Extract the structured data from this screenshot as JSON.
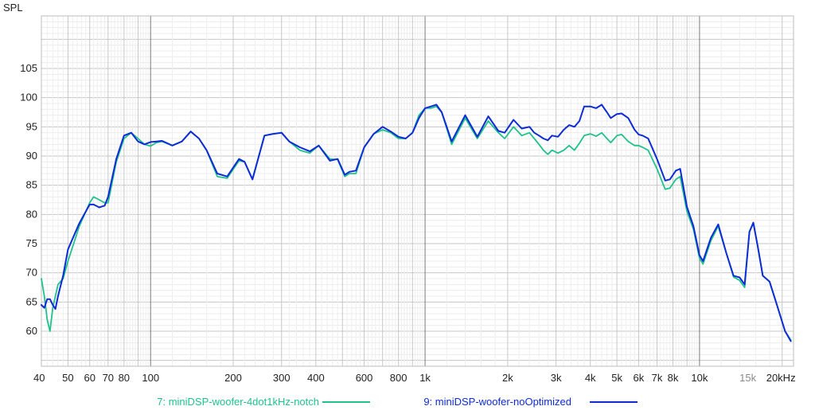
{
  "chart_data": {
    "type": "line",
    "ylabel": "SPL",
    "ylim": [
      54,
      114
    ],
    "xlim": [
      40,
      22000
    ],
    "x_scale": "log",
    "grid": true,
    "legend_placement": "bottom",
    "y_ticks": [
      {
        "value": 60,
        "label": "60"
      },
      {
        "value": 65,
        "label": "65"
      },
      {
        "value": 70,
        "label": "70"
      },
      {
        "value": 75,
        "label": "75"
      },
      {
        "value": 80,
        "label": "80"
      },
      {
        "value": 85,
        "label": "85"
      },
      {
        "value": 90,
        "label": "90"
      },
      {
        "value": 95,
        "label": "95"
      },
      {
        "value": 100,
        "label": "100"
      },
      {
        "value": 105,
        "label": "105"
      }
    ],
    "x_ticks": [
      {
        "value": 40,
        "label": "40"
      },
      {
        "value": 50,
        "label": "50"
      },
      {
        "value": 60,
        "label": "60"
      },
      {
        "value": 70,
        "label": "70"
      },
      {
        "value": 80,
        "label": "80"
      },
      {
        "value": 100,
        "label": "100"
      },
      {
        "value": 200,
        "label": "200"
      },
      {
        "value": 300,
        "label": "300"
      },
      {
        "value": 400,
        "label": "400"
      },
      {
        "value": 600,
        "label": "600"
      },
      {
        "value": 800,
        "label": "800"
      },
      {
        "value": 1000,
        "label": "1k"
      },
      {
        "value": 2000,
        "label": "2k"
      },
      {
        "value": 3000,
        "label": "3k"
      },
      {
        "value": 4000,
        "label": "4k"
      },
      {
        "value": 5000,
        "label": "5k"
      },
      {
        "value": 6000,
        "label": "6k"
      },
      {
        "value": 7000,
        "label": "7k"
      },
      {
        "value": 8000,
        "label": "8k"
      },
      {
        "value": 10000,
        "label": "10k"
      },
      {
        "value": 15000,
        "label": "15k",
        "minor": true
      },
      {
        "value": 20000,
        "label": "20kHz"
      }
    ],
    "major_x_gridlines": [
      100,
      1000,
      10000
    ],
    "series": [
      {
        "name": "7: miniDSP-woofer-4dot1kHz-notch",
        "color": "#1fc28a",
        "points": [
          [
            40,
            69
          ],
          [
            41,
            66
          ],
          [
            42,
            62
          ],
          [
            43,
            60
          ],
          [
            44,
            64
          ],
          [
            46,
            68
          ],
          [
            48,
            69
          ],
          [
            50,
            72
          ],
          [
            55,
            78
          ],
          [
            60,
            82
          ],
          [
            62,
            83
          ],
          [
            65,
            82.5
          ],
          [
            68,
            82
          ],
          [
            70,
            82
          ],
          [
            75,
            89
          ],
          [
            80,
            93
          ],
          [
            85,
            94
          ],
          [
            90,
            93
          ],
          [
            95,
            92
          ],
          [
            100,
            91.7
          ],
          [
            105,
            92.3
          ],
          [
            110,
            92.5
          ],
          [
            120,
            91.8
          ],
          [
            130,
            92.5
          ],
          [
            140,
            94.2
          ],
          [
            150,
            93
          ],
          [
            160,
            91
          ],
          [
            175,
            86.5
          ],
          [
            190,
            86.2
          ],
          [
            210,
            89.2
          ],
          [
            220,
            89
          ],
          [
            235,
            86
          ],
          [
            260,
            93.5
          ],
          [
            280,
            93.8
          ],
          [
            300,
            94
          ],
          [
            320,
            92.5
          ],
          [
            350,
            91
          ],
          [
            380,
            90.5
          ],
          [
            410,
            91.8
          ],
          [
            450,
            89.5
          ],
          [
            480,
            89.4
          ],
          [
            510,
            86.5
          ],
          [
            530,
            87
          ],
          [
            560,
            87
          ],
          [
            600,
            91.5
          ],
          [
            650,
            93.8
          ],
          [
            700,
            94.5
          ],
          [
            750,
            94
          ],
          [
            800,
            93
          ],
          [
            850,
            93
          ],
          [
            900,
            94
          ],
          [
            950,
            97
          ],
          [
            1000,
            98.2
          ],
          [
            1050,
            98.2
          ],
          [
            1100,
            98.5
          ],
          [
            1150,
            97.5
          ],
          [
            1250,
            92
          ],
          [
            1400,
            96.5
          ],
          [
            1550,
            93
          ],
          [
            1700,
            96
          ],
          [
            1850,
            94
          ],
          [
            1950,
            93
          ],
          [
            2100,
            95
          ],
          [
            2250,
            93.5
          ],
          [
            2400,
            94
          ],
          [
            2500,
            93
          ],
          [
            2600,
            92
          ],
          [
            2700,
            91
          ],
          [
            2800,
            90.3
          ],
          [
            2900,
            91
          ],
          [
            3050,
            90.5
          ],
          [
            3200,
            91
          ],
          [
            3350,
            91.8
          ],
          [
            3500,
            91
          ],
          [
            3650,
            92.2
          ],
          [
            3800,
            93.5
          ],
          [
            4000,
            93.8
          ],
          [
            4200,
            93.4
          ],
          [
            4400,
            94
          ],
          [
            4600,
            93
          ],
          [
            4750,
            92.3
          ],
          [
            5000,
            93.5
          ],
          [
            5200,
            93.7
          ],
          [
            5500,
            92.5
          ],
          [
            5800,
            91.8
          ],
          [
            6000,
            91.8
          ],
          [
            6200,
            91.5
          ],
          [
            6500,
            91
          ],
          [
            7000,
            87.8
          ],
          [
            7500,
            84.3
          ],
          [
            7800,
            84.5
          ],
          [
            8200,
            86
          ],
          [
            8500,
            86.5
          ],
          [
            9000,
            80.5
          ],
          [
            9500,
            77.5
          ],
          [
            10000,
            72.5
          ],
          [
            10300,
            71.5
          ],
          [
            11000,
            75.5
          ],
          [
            11700,
            78
          ],
          [
            12500,
            73.5
          ],
          [
            13300,
            69.3
          ],
          [
            14000,
            68.7
          ],
          [
            14600,
            67.5
          ],
          [
            15200,
            77
          ],
          [
            15700,
            78.5
          ],
          [
            16300,
            74.5
          ],
          [
            17000,
            69.5
          ],
          [
            18000,
            68.5
          ],
          [
            19000,
            65
          ],
          [
            20500,
            60
          ],
          [
            21500,
            58.5
          ]
        ]
      },
      {
        "name": "9: miniDSP-woofer-noOptimized",
        "color": "#0d2bd6",
        "points": [
          [
            40,
            64.5
          ],
          [
            41,
            64
          ],
          [
            42,
            65.5
          ],
          [
            43,
            65.5
          ],
          [
            44,
            64.5
          ],
          [
            45,
            63.8
          ],
          [
            46,
            66
          ],
          [
            48,
            69.5
          ],
          [
            50,
            74
          ],
          [
            55,
            78.5
          ],
          [
            60,
            81.7
          ],
          [
            62,
            81.7
          ],
          [
            65,
            81.2
          ],
          [
            68,
            81.5
          ],
          [
            70,
            83
          ],
          [
            75,
            89.5
          ],
          [
            80,
            93.5
          ],
          [
            85,
            94
          ],
          [
            90,
            92.5
          ],
          [
            95,
            92
          ],
          [
            100,
            92.4
          ],
          [
            105,
            92.5
          ],
          [
            110,
            92.6
          ],
          [
            120,
            91.8
          ],
          [
            130,
            92.5
          ],
          [
            140,
            94.2
          ],
          [
            150,
            93
          ],
          [
            160,
            91
          ],
          [
            175,
            87
          ],
          [
            190,
            86.5
          ],
          [
            210,
            89.5
          ],
          [
            220,
            89
          ],
          [
            235,
            86
          ],
          [
            260,
            93.5
          ],
          [
            280,
            93.8
          ],
          [
            300,
            94
          ],
          [
            320,
            92.5
          ],
          [
            350,
            91.5
          ],
          [
            380,
            90.8
          ],
          [
            410,
            91.8
          ],
          [
            450,
            89.2
          ],
          [
            480,
            89.5
          ],
          [
            510,
            86.8
          ],
          [
            530,
            87.3
          ],
          [
            560,
            87.5
          ],
          [
            600,
            91.5
          ],
          [
            650,
            93.8
          ],
          [
            700,
            95
          ],
          [
            750,
            94.2
          ],
          [
            800,
            93.3
          ],
          [
            850,
            93
          ],
          [
            900,
            94
          ],
          [
            950,
            96.5
          ],
          [
            1000,
            98.2
          ],
          [
            1050,
            98.5
          ],
          [
            1100,
            98.8
          ],
          [
            1150,
            97.5
          ],
          [
            1250,
            92.5
          ],
          [
            1400,
            97
          ],
          [
            1550,
            93.3
          ],
          [
            1700,
            96.8
          ],
          [
            1850,
            94.3
          ],
          [
            1950,
            94
          ],
          [
            2100,
            96.2
          ],
          [
            2250,
            94.7
          ],
          [
            2400,
            95
          ],
          [
            2500,
            94
          ],
          [
            2600,
            93.5
          ],
          [
            2700,
            93
          ],
          [
            2800,
            92.7
          ],
          [
            2900,
            93.5
          ],
          [
            3050,
            93.3
          ],
          [
            3200,
            94.5
          ],
          [
            3350,
            95.3
          ],
          [
            3500,
            95
          ],
          [
            3650,
            96
          ],
          [
            3800,
            98.5
          ],
          [
            4000,
            98.5
          ],
          [
            4200,
            98.2
          ],
          [
            4400,
            98.8
          ],
          [
            4600,
            97.5
          ],
          [
            4750,
            96.5
          ],
          [
            5000,
            97.2
          ],
          [
            5200,
            97.3
          ],
          [
            5500,
            96.5
          ],
          [
            5800,
            94.5
          ],
          [
            6000,
            93.7
          ],
          [
            6200,
            93.5
          ],
          [
            6500,
            93
          ],
          [
            7000,
            89.5
          ],
          [
            7500,
            85.8
          ],
          [
            7800,
            86
          ],
          [
            8200,
            87.5
          ],
          [
            8500,
            87.8
          ],
          [
            9000,
            81.3
          ],
          [
            9500,
            78
          ],
          [
            10000,
            73
          ],
          [
            10300,
            72
          ],
          [
            11000,
            76
          ],
          [
            11700,
            78.3
          ],
          [
            12500,
            73.5
          ],
          [
            13300,
            69.5
          ],
          [
            14000,
            69.2
          ],
          [
            14600,
            68
          ],
          [
            15200,
            77
          ],
          [
            15700,
            78.6
          ],
          [
            16300,
            74.5
          ],
          [
            17000,
            69.5
          ],
          [
            18000,
            68.5
          ],
          [
            19000,
            65
          ],
          [
            20500,
            60
          ],
          [
            21500,
            58.3
          ]
        ]
      }
    ]
  }
}
